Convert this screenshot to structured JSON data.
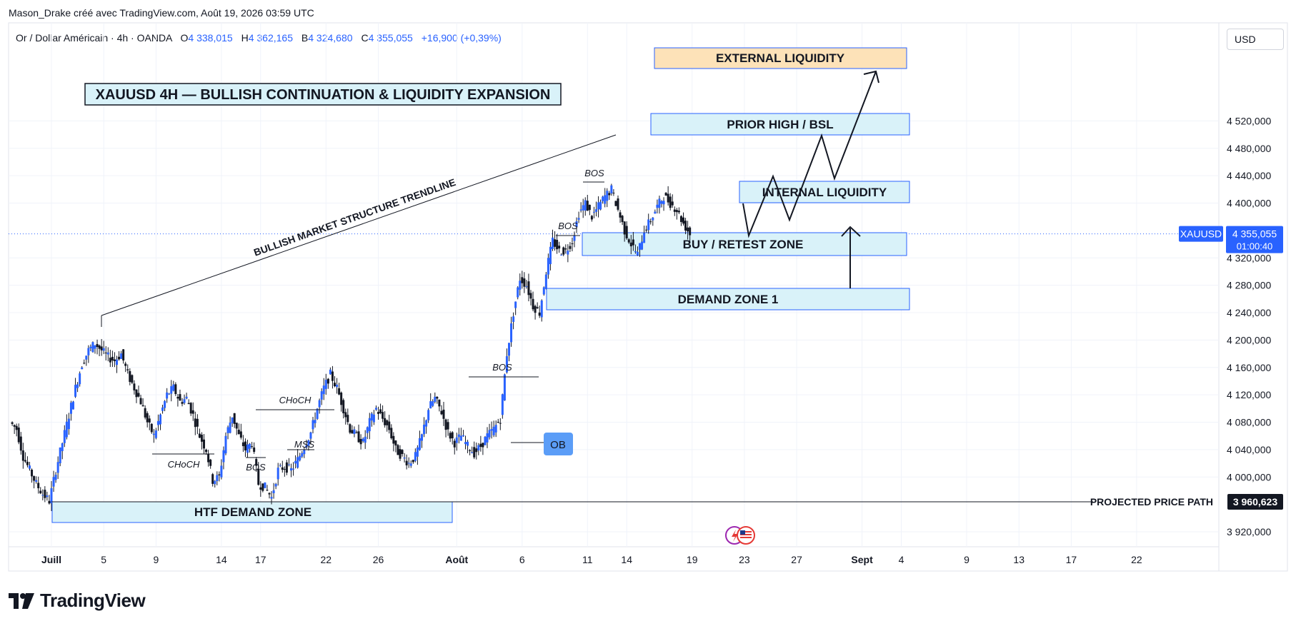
{
  "header": {
    "credit": "Mason_Drake créé avec TradingView.com, Août 19, 2026 03:59 UTC"
  },
  "legend": {
    "symbol": "Or / Dollar Américain · 4h · OANDA",
    "open_key": "O",
    "open": "4 338,015",
    "high_key": "H",
    "high": "4 362,165",
    "low_key": "B",
    "low": "4 324,680",
    "close_key": "C",
    "close": "4 355,055",
    "change": "+16,900 (+0,39%)"
  },
  "currency_button": "USD",
  "brand": "TradingView",
  "chart_data": {
    "type": "candlestick",
    "title": "XAUUSD 4H — BULLISH CONTINUATION & LIQUIDITY EXPANSION",
    "ylim": [
      3890,
      4570
    ],
    "y_ticks": [
      "3 920,000",
      "4 000,000",
      "4 040,000",
      "4 080,000",
      "4 120,000",
      "4 160,000",
      "4 200,000",
      "4 240,000",
      "4 280,000",
      "4 320,000",
      "4 400,000",
      "4 440,000",
      "4 480,000",
      "4 520,000"
    ],
    "y_tick_values": [
      3920,
      4000,
      4040,
      4080,
      4120,
      4160,
      4200,
      4240,
      4280,
      4320,
      4400,
      4440,
      4480,
      4520
    ],
    "x_ticks": [
      {
        "label": "Juill",
        "day": 0,
        "bold": true
      },
      {
        "label": "5",
        "day": 4
      },
      {
        "label": "9",
        "day": 8
      },
      {
        "label": "14",
        "day": 13
      },
      {
        "label": "17",
        "day": 16
      },
      {
        "label": "22",
        "day": 21
      },
      {
        "label": "26",
        "day": 25
      },
      {
        "label": "Août",
        "day": 31,
        "bold": true
      },
      {
        "label": "6",
        "day": 36
      },
      {
        "label": "11",
        "day": 41
      },
      {
        "label": "14",
        "day": 44
      },
      {
        "label": "19",
        "day": 49
      },
      {
        "label": "23",
        "day": 53
      },
      {
        "label": "27",
        "day": 57
      },
      {
        "label": "Sept",
        "day": 62,
        "bold": true
      },
      {
        "label": "4",
        "day": 65
      },
      {
        "label": "9",
        "day": 70
      },
      {
        "label": "13",
        "day": 74
      },
      {
        "label": "17",
        "day": 78
      },
      {
        "label": "22",
        "day": 83
      }
    ],
    "price_path": [
      [
        -3,
        4080
      ],
      [
        -2.5,
        4070
      ],
      [
        -2,
        4030
      ],
      [
        -1.5,
        4010
      ],
      [
        -1,
        3990
      ],
      [
        -0.5,
        3975
      ],
      [
        0,
        3965
      ],
      [
        0.5,
        4010
      ],
      [
        1,
        4050
      ],
      [
        1.5,
        4090
      ],
      [
        2,
        4130
      ],
      [
        2.5,
        4165
      ],
      [
        3,
        4185
      ],
      [
        3.5,
        4195
      ],
      [
        4,
        4185
      ],
      [
        4.5,
        4175
      ],
      [
        5,
        4170
      ],
      [
        5.5,
        4180
      ],
      [
        6,
        4150
      ],
      [
        6.5,
        4130
      ],
      [
        7,
        4110
      ],
      [
        7.5,
        4080
      ],
      [
        8,
        4060
      ],
      [
        8.5,
        4090
      ],
      [
        9,
        4120
      ],
      [
        9.5,
        4130
      ],
      [
        10,
        4110
      ],
      [
        10.5,
        4115
      ],
      [
        11,
        4090
      ],
      [
        11.5,
        4060
      ],
      [
        12,
        4040
      ],
      [
        12.5,
        3995
      ],
      [
        13,
        4000
      ],
      [
        13.5,
        4060
      ],
      [
        14,
        4090
      ],
      [
        14.5,
        4060
      ],
      [
        15,
        4040
      ],
      [
        15.5,
        4050
      ],
      [
        16,
        3990
      ],
      [
        16.5,
        3985
      ],
      [
        17,
        3970
      ],
      [
        17.5,
        4010
      ],
      [
        18,
        4015
      ],
      [
        18.5,
        4010
      ],
      [
        19,
        4025
      ],
      [
        19.5,
        4045
      ],
      [
        20,
        4065
      ],
      [
        20.5,
        4100
      ],
      [
        21,
        4130
      ],
      [
        21.5,
        4150
      ],
      [
        22,
        4130
      ],
      [
        22.5,
        4100
      ],
      [
        23,
        4070
      ],
      [
        23.5,
        4060
      ],
      [
        24,
        4050
      ],
      [
        24.5,
        4080
      ],
      [
        25,
        4100
      ],
      [
        25.5,
        4085
      ],
      [
        26,
        4070
      ],
      [
        26.5,
        4040
      ],
      [
        27,
        4030
      ],
      [
        27.5,
        4020
      ],
      [
        28,
        4030
      ],
      [
        28.5,
        4060
      ],
      [
        29,
        4100
      ],
      [
        29.5,
        4115
      ],
      [
        30,
        4095
      ],
      [
        30.5,
        4065
      ],
      [
        31,
        4050
      ],
      [
        31.5,
        4060
      ],
      [
        32,
        4045
      ],
      [
        32.5,
        4035
      ],
      [
        33,
        4045
      ],
      [
        33.5,
        4060
      ],
      [
        34,
        4070
      ],
      [
        34.5,
        4085
      ],
      [
        35,
        4180
      ],
      [
        35.5,
        4240
      ],
      [
        36,
        4290
      ],
      [
        36.5,
        4280
      ],
      [
        37,
        4250
      ],
      [
        37.5,
        4240
      ],
      [
        38,
        4300
      ],
      [
        38.5,
        4345
      ],
      [
        39,
        4330
      ],
      [
        39.5,
        4330
      ],
      [
        40,
        4345
      ],
      [
        40.5,
        4385
      ],
      [
        41,
        4400
      ],
      [
        41.5,
        4380
      ],
      [
        42,
        4395
      ],
      [
        42.5,
        4410
      ],
      [
        43,
        4420
      ],
      [
        43.5,
        4390
      ],
      [
        44,
        4360
      ],
      [
        44.5,
        4340
      ],
      [
        45,
        4325
      ],
      [
        45.5,
        4360
      ],
      [
        46,
        4375
      ],
      [
        46.5,
        4395
      ],
      [
        47,
        4410
      ],
      [
        47.5,
        4400
      ],
      [
        48,
        4390
      ],
      [
        48.5,
        4370
      ],
      [
        49,
        4355
      ]
    ],
    "annotations": {
      "trendline_label": "BULLISH MARKET STRUCTURE TRENDLINE",
      "zones": {
        "external_liquidity": "EXTERNAL LIQUIDITY",
        "prior_high": "PRIOR HIGH / BSL",
        "internal_liquidity": "INTERNAL LIQUIDITY",
        "buy_retest": "BUY / RETEST ZONE",
        "demand_zone_1": "DEMAND ZONE 1",
        "htf_demand": "HTF DEMAND ZONE"
      },
      "structure_labels": {
        "choch_1": "CHoCH",
        "choch_2": "CHoCH",
        "bos_1": "BOS",
        "mss": "MSS",
        "bos_2": "BOS",
        "bos_3": "BOS",
        "bos_4": "BOS"
      },
      "ob": "OB",
      "projected_label": "PROJECTED PRICE PATH",
      "projected_price": "3 960,623"
    },
    "current_price": {
      "symbol_tag": "XAUUSD",
      "price": "4 355,055",
      "countdown": "01:00:40",
      "value": 4355.055
    },
    "colors": {
      "candle": "#2962ff",
      "wick": "#131722",
      "zone_fill": "#d9f2f9",
      "zone_border": "#2962ff",
      "external_fill": "#fde2b8",
      "price_tag": "#2962ff",
      "ob_fill": "#5b9df7"
    }
  }
}
